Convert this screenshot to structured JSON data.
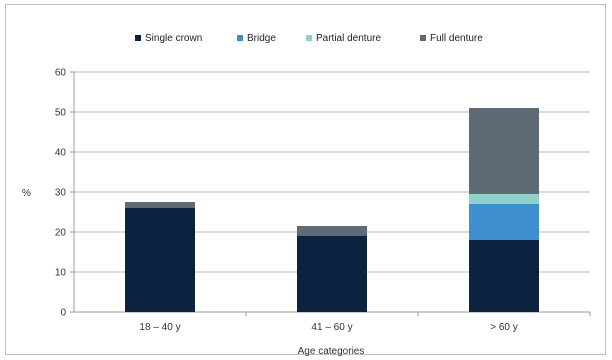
{
  "chart_data": {
    "type": "bar",
    "stacked": true,
    "categories": [
      "18 – 40 y",
      "41 – 60 y",
      "> 60 y"
    ],
    "series": [
      {
        "name": "Single crown",
        "color": "#0c2340",
        "values": [
          26,
          19,
          18
        ]
      },
      {
        "name": "Bridge",
        "color": "#3d8fd0",
        "values": [
          0,
          0,
          9
        ]
      },
      {
        "name": "Partial denture",
        "color": "#8fd1cb",
        "values": [
          0,
          0,
          2.5
        ]
      },
      {
        "name": "Full denture",
        "color": "#5e6b75",
        "values": [
          1.5,
          2.5,
          21.5
        ]
      }
    ],
    "xlabel": "Age categories",
    "ylabel": "%",
    "ylim": [
      0,
      60
    ],
    "yticks": [
      0,
      10,
      20,
      30,
      40,
      50,
      60
    ],
    "grid": true,
    "legend": "top"
  }
}
